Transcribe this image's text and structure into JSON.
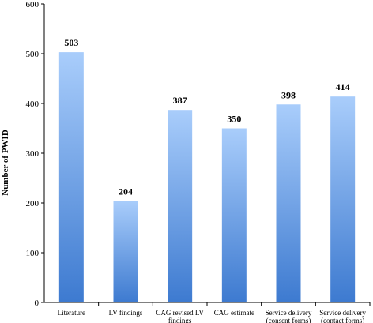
{
  "chart_data": {
    "type": "bar",
    "title": "",
    "xlabel": "",
    "ylabel": "Number of PWID",
    "categories": [
      [
        "Literature"
      ],
      [
        "LV findings"
      ],
      [
        "CAG revised LV",
        "findings"
      ],
      [
        "CAG estimate"
      ],
      [
        "Service delivery",
        "(consent forms)"
      ],
      [
        "Service delivery",
        "(contact forms)"
      ]
    ],
    "values": [
      503,
      204,
      387,
      350,
      398,
      414
    ],
    "ylim": [
      0,
      600
    ],
    "yticks": [
      0,
      100,
      200,
      300,
      400,
      500,
      600
    ],
    "grid": false,
    "legend": "none",
    "data_labels": true,
    "colors": {
      "bar_top": "#a9cdfb",
      "bar_bottom": "#3d7ad0",
      "axis": "#000000"
    }
  }
}
